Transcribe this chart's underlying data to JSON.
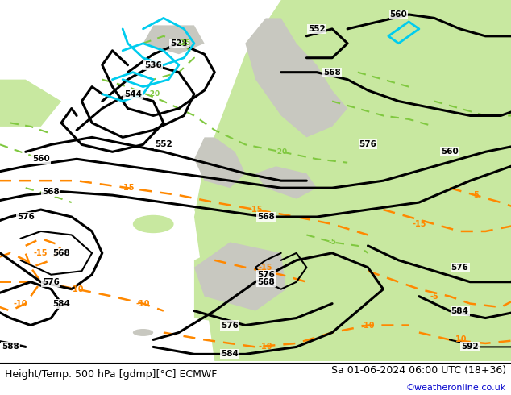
{
  "background_color": "#ffffff",
  "land_color": "#d0d0c8",
  "ocean_color": "#e8e8e8",
  "green_fill": "#c8e8a0",
  "green_fill2": "#b0dc80",
  "bottom_text_left": "Height/Temp. 500 hPa [gdmp][°C] ECMWF",
  "bottom_text_right": "Sa 01-06-2024 06:00 UTC (18+36)",
  "bottom_text_url": "©weatheronline.co.uk",
  "bottom_text_color": "#000000",
  "bottom_url_color": "#0000cc",
  "fig_width": 6.34,
  "fig_height": 4.9,
  "dpi": 100,
  "text_fontsize": 9.0,
  "url_fontsize": 8.0
}
